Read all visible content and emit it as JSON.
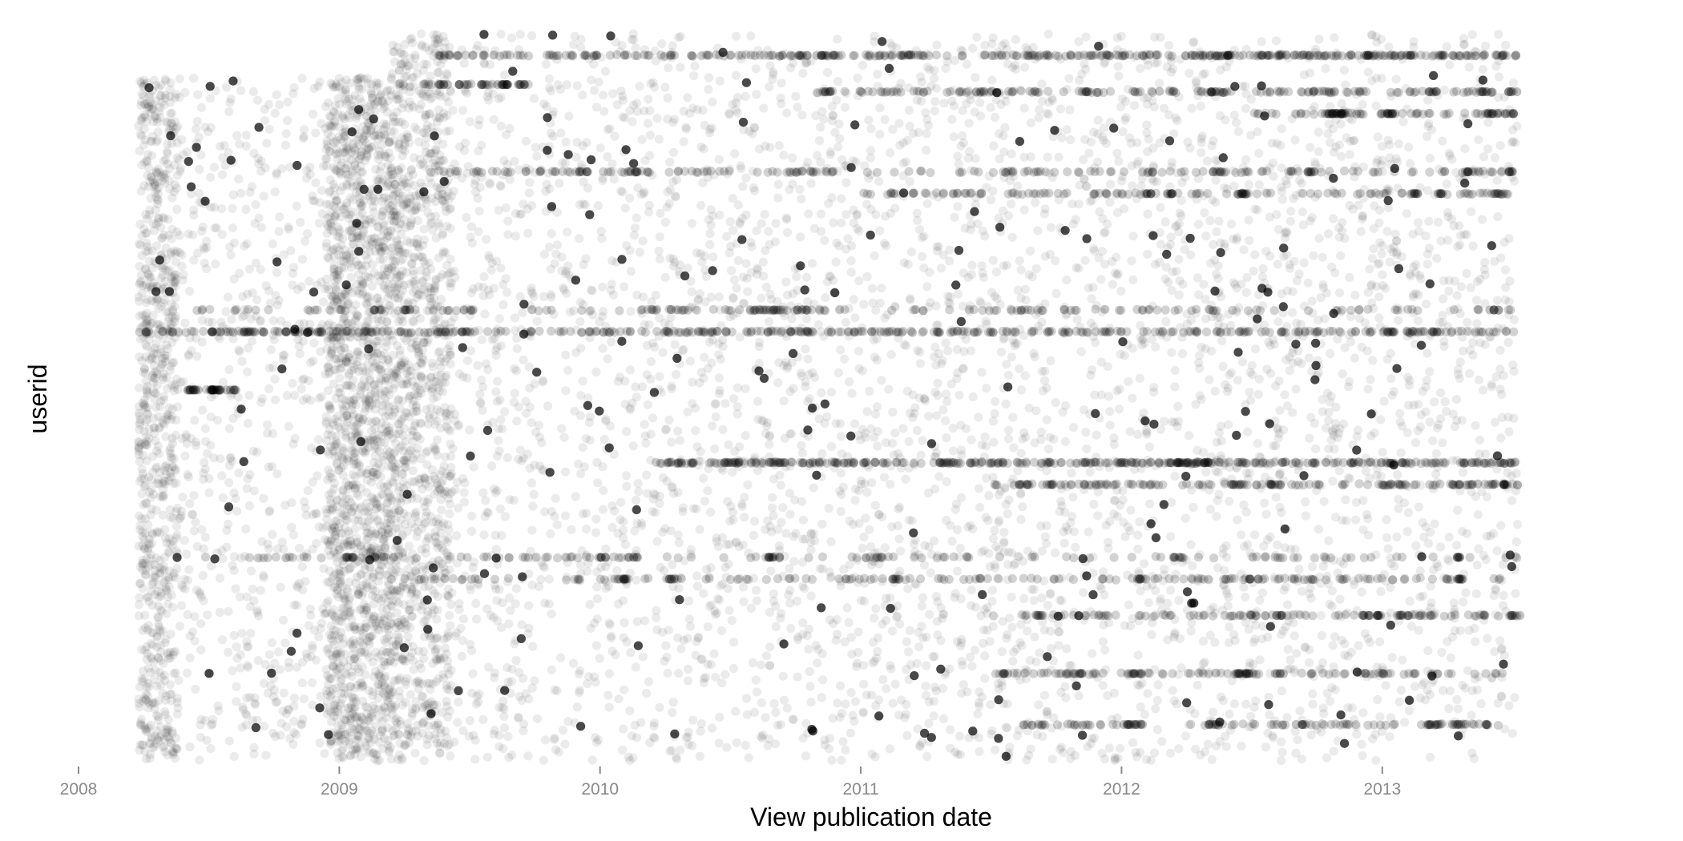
{
  "chart_data": {
    "type": "scatter",
    "title": "",
    "xlabel": "View publication date",
    "ylabel": "userid",
    "xlim": [
      2008.0,
      2013.6
    ],
    "x_ticks": [
      {
        "value": 2008,
        "label": "2008"
      },
      {
        "value": 2009,
        "label": "2009"
      },
      {
        "value": 2010,
        "label": "2010"
      },
      {
        "value": 2011,
        "label": "2011"
      },
      {
        "value": 2012,
        "label": "2012"
      },
      {
        "value": 2013,
        "label": "2013"
      }
    ],
    "y_ticks": [],
    "grid": false,
    "legend": "none",
    "point_color": "#000000",
    "point_opacity": 0.08,
    "dense_bands": [
      {
        "x_start": 2008.23,
        "x_end": 2008.38,
        "density": 1.6
      },
      {
        "x_start": 2008.95,
        "x_end": 2009.25,
        "density": 2.2
      },
      {
        "x_start": 2009.25,
        "x_end": 2009.43,
        "density": 1.4
      }
    ],
    "user_activity": [
      {
        "userid": 0.97,
        "start": 2009.35,
        "end": 2013.52,
        "rate": 80
      },
      {
        "userid": 0.93,
        "start": 2009.3,
        "end": 2009.75,
        "rate": 30
      },
      {
        "userid": 0.92,
        "start": 2010.8,
        "end": 2013.52,
        "rate": 55
      },
      {
        "userid": 0.89,
        "start": 2012.5,
        "end": 2013.5,
        "rate": 60
      },
      {
        "userid": 0.81,
        "start": 2009.3,
        "end": 2013.5,
        "rate": 40
      },
      {
        "userid": 0.78,
        "start": 2011.0,
        "end": 2013.5,
        "rate": 45
      },
      {
        "userid": 0.62,
        "start": 2008.4,
        "end": 2013.5,
        "rate": 30
      },
      {
        "userid": 0.59,
        "start": 2008.23,
        "end": 2013.52,
        "rate": 70
      },
      {
        "userid": 0.51,
        "start": 2008.4,
        "end": 2008.6,
        "rate": 30
      },
      {
        "userid": 0.41,
        "start": 2010.2,
        "end": 2013.52,
        "rate": 100
      },
      {
        "userid": 0.38,
        "start": 2011.5,
        "end": 2013.52,
        "rate": 60
      },
      {
        "userid": 0.28,
        "start": 2008.4,
        "end": 2013.52,
        "rate": 25
      },
      {
        "userid": 0.25,
        "start": 2009.2,
        "end": 2013.5,
        "rate": 35
      },
      {
        "userid": 0.2,
        "start": 2011.5,
        "end": 2013.52,
        "rate": 45
      },
      {
        "userid": 0.12,
        "start": 2011.5,
        "end": 2013.5,
        "rate": 45
      },
      {
        "userid": 0.05,
        "start": 2011.6,
        "end": 2013.52,
        "rate": 45
      }
    ]
  }
}
